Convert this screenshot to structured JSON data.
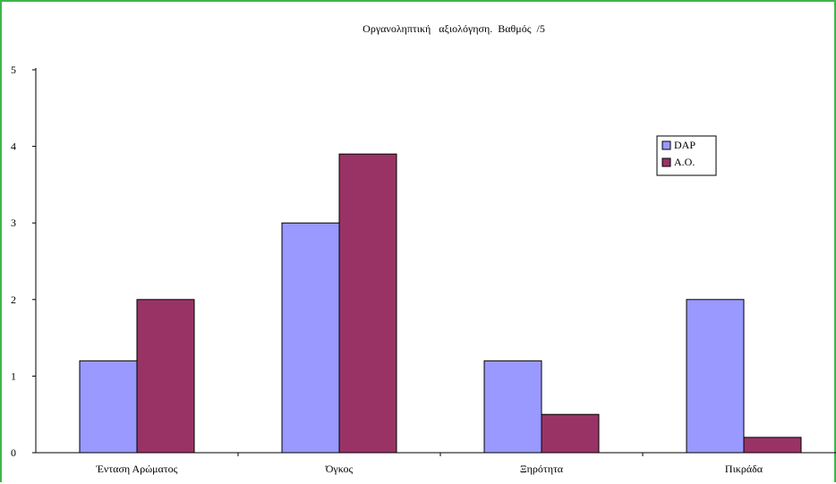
{
  "chart_data": {
    "type": "bar",
    "title": "Οργανοληπτική   αξιολόγηση.  Βαθμός  /5",
    "xlabel": "",
    "ylabel": "",
    "categories": [
      "Ένταση  Αρώματος",
      "Όγκος",
      "Ξηρότητα",
      "Πικράδα"
    ],
    "series": [
      {
        "name": "DAP",
        "values": [
          1.2,
          3.0,
          1.2,
          2.0
        ],
        "color": "#9999ff"
      },
      {
        "name": "A.O.",
        "values": [
          2.0,
          3.9,
          0.5,
          0.2
        ],
        "color": "#993366"
      }
    ],
    "ylim": [
      0,
      5
    ],
    "yticks": [
      "0",
      "1",
      "2",
      "3",
      "4",
      "5"
    ],
    "grid": false,
    "legend_position": "right"
  },
  "colors": {
    "frame_border": "#3db54a",
    "axis": "#000000",
    "bar_stroke": "#000000"
  }
}
